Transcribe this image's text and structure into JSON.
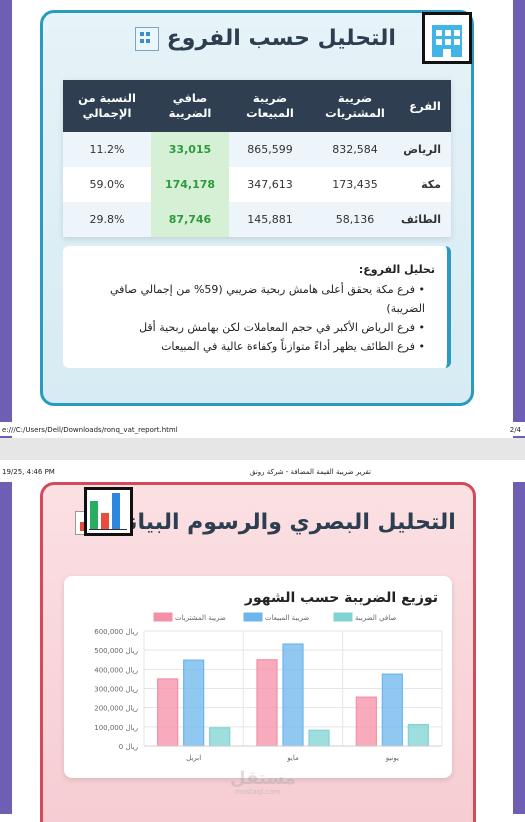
{
  "page1": {
    "title": "التحليل حسب الفروع",
    "title_icon": "office-building-icon",
    "table": {
      "headers": [
        "الفرع",
        "ضريبة المشتريات",
        "ضريبة المبيعات",
        "صافي الضريبة",
        "النسبة من الإجمالي"
      ],
      "rows": [
        {
          "branch": "الرياض",
          "purchases": "832,584",
          "sales": "865,599",
          "net": "33,015",
          "pct": "11.2%"
        },
        {
          "branch": "مكة",
          "purchases": "173,435",
          "sales": "347,613",
          "net": "174,178",
          "pct": "59.0%"
        },
        {
          "branch": "الطائف",
          "purchases": "58,136",
          "sales": "145,881",
          "net": "87,746",
          "pct": "29.8%"
        }
      ]
    },
    "analysis": {
      "heading": "تحليل الفروع:",
      "items": [
        "فرع مكة يحقق أعلى هامش ربحية ضريبي (59% من إجمالي صافي الضريبة)",
        "فرع الرياض الأكبر في حجم المعاملات لكن بهامش ربحية أقل",
        "فرع الطائف يظهر أداءً متوازناً وكفاءة عالية في المبيعات"
      ]
    },
    "footer_path": "e:///C:/Users/Dell/Downloads/ronq_vat_report.html",
    "footer_page": "2/4"
  },
  "page2": {
    "header_date": "19/25, 4:46 PM",
    "header_title": "تقرير ضريبة القيمة المضافة - شركة رونق",
    "title": "التحليل البصري والرسوم البيانية",
    "title_icon": "bar-chart-icon",
    "watermark": "مستقل",
    "watermark_sub": "mostaql.com"
  },
  "chart_data": {
    "type": "bar",
    "title": "توزيع الضريبة حسب الشهور",
    "categories": [
      "ابريل",
      "مايو",
      "يونيو"
    ],
    "series": [
      {
        "name": "ضريبة المشتريات",
        "color": "#f48fa5",
        "values": [
          350000,
          450000,
          255000
        ]
      },
      {
        "name": "ضريبة المبيعات",
        "color": "#6cb6ec",
        "values": [
          448000,
          532000,
          375000
        ]
      },
      {
        "name": "صافي الضريبة",
        "color": "#7fd3d3",
        "values": [
          95000,
          82000,
          112000
        ]
      }
    ],
    "yticks": [
      "0 ريال",
      "100,000 ريال",
      "200,000 ريال",
      "300,000 ريال",
      "400,000 ريال",
      "500,000 ريال",
      "600,000 ريال"
    ],
    "ylim": [
      0,
      600000
    ]
  }
}
